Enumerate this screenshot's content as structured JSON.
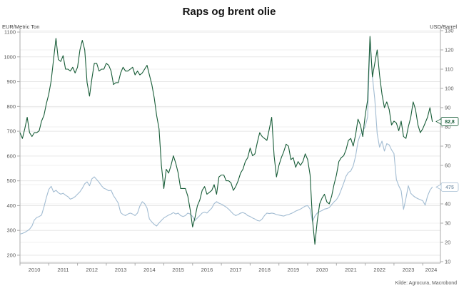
{
  "title": "Raps og brent olie",
  "source": "Kilde: Agrocura, Macrobond",
  "left_axis": {
    "unit": "EUR/Metric Ton",
    "tick_labels": [
      "1100",
      "1000",
      "900",
      "800",
      "700",
      "600",
      "500",
      "400",
      "300",
      "200"
    ]
  },
  "right_axis": {
    "unit": "USD/Barrel",
    "tick_labels": [
      "130",
      "120",
      "110",
      "100",
      "90",
      "80",
      "70",
      "60",
      "50",
      "40",
      "30",
      "20",
      "10"
    ]
  },
  "x_axis": {
    "tick_labels": [
      "2010",
      "2011",
      "2012",
      "2013",
      "2014",
      "2015",
      "2016",
      "2017",
      "2018",
      "2019",
      "2020",
      "2021",
      "2022",
      "2023",
      "2024"
    ]
  },
  "callouts": [
    {
      "label": "82,8",
      "value": 82.8,
      "axis": "right",
      "border": "#175c37",
      "text_color": "#175c37"
    },
    {
      "label": "475",
      "value": 475,
      "axis": "left",
      "border": "#a2bcd2",
      "text_color": "#8aa0b4"
    }
  ],
  "colors": {
    "brent_green": "#175c37",
    "raps_blue": "#a2bcd2",
    "grid_major": "#e7e7e7",
    "grid_minor": "#f2f2f2",
    "axis_line": "#ababab"
  },
  "chart_data": {
    "type": "line",
    "title": "Raps og brent olie",
    "grid": true,
    "legend": "none",
    "x_start": 2010.0,
    "x_step_years": 0.0833333,
    "x_ticks": [
      2010,
      2011,
      2012,
      2013,
      2014,
      2015,
      2016,
      2017,
      2018,
      2019,
      2020,
      2021,
      2022,
      2023,
      2024
    ],
    "left_axis_label": "EUR/Metric Ton",
    "left_ylim": [
      200,
      1100
    ],
    "right_axis_label": "USD/Barrel",
    "right_ylim": [
      10,
      130
    ],
    "series": [
      {
        "id": "raps",
        "name": "Raps",
        "axis": "left",
        "unit": "EUR/Metric Ton",
        "color": "#a2bcd2",
        "last_value": 475,
        "values": [
          285,
          288,
          292,
          298,
          305,
          318,
          342,
          352,
          356,
          362,
          395,
          432,
          465,
          478,
          455,
          462,
          452,
          446,
          450,
          442,
          436,
          426,
          430,
          436,
          446,
          456,
          470,
          488,
          496,
          480,
          508,
          516,
          505,
          494,
          480,
          470,
          466,
          460,
          462,
          440,
          426,
          410,
          372,
          364,
          360,
          366,
          370,
          366,
          360,
          370,
          398,
          416,
          408,
          390,
          346,
          334,
          324,
          318,
          330,
          340,
          350,
          356,
          362,
          366,
          372,
          366,
          370,
          360,
          356,
          360,
          370,
          366,
          356,
          340,
          350,
          360,
          370,
          374,
          370,
          380,
          390,
          408,
          416,
          410,
          406,
          400,
          394,
          386,
          376,
          366,
          360,
          364,
          370,
          372,
          368,
          360,
          356,
          350,
          346,
          340,
          338,
          346,
          360,
          370,
          368,
          370,
          368,
          364,
          362,
          360,
          358,
          362,
          364,
          368,
          372,
          378,
          382,
          386,
          392,
          398,
          400,
          386,
          336,
          358,
          370,
          376,
          380,
          386,
          388,
          392,
          404,
          415,
          424,
          440,
          464,
          490,
          518,
          534,
          540,
          560,
          600,
          658,
          688,
          700,
          718,
          758,
          1070,
          920,
          830,
          690,
          636,
          660,
          620,
          650,
          645,
          625,
          610,
          505,
          480,
          460,
          385,
          430,
          480,
          450,
          440,
          433,
          428,
          424,
          420,
          402,
          438,
          462,
          475
        ]
      },
      {
        "id": "brent",
        "name": "Brent olie",
        "axis": "right",
        "unit": "USD/Barrel",
        "color": "#175c37",
        "last_value": 82.8,
        "values": [
          77,
          74,
          79,
          85,
          77,
          75,
          77,
          77,
          78,
          83,
          86,
          92,
          97,
          104,
          115,
          126,
          115,
          114,
          117,
          110,
          110,
          109,
          111,
          108,
          111,
          120,
          125,
          120,
          103,
          96,
          105,
          113,
          113,
          109,
          110,
          110,
          113,
          112,
          109,
          102,
          103,
          103,
          108,
          111,
          109,
          109,
          110,
          111,
          107,
          109,
          107,
          108,
          110,
          112,
          107,
          102,
          95,
          86,
          79,
          60,
          48,
          58,
          56,
          60,
          65,
          61,
          56,
          48,
          48,
          48,
          44,
          37,
          28,
          33,
          39,
          42,
          47,
          49,
          45,
          46,
          47,
          50,
          45,
          54,
          55,
          55,
          52,
          52,
          51,
          47,
          49,
          52,
          56,
          58,
          62,
          64,
          69,
          65,
          66,
          72,
          77,
          75,
          74,
          73,
          79,
          85,
          65,
          54,
          60,
          64,
          67,
          71,
          70,
          63,
          64,
          59,
          62,
          60,
          62,
          66,
          63,
          55,
          32,
          19,
          31,
          40,
          43,
          45,
          41,
          40,
          44,
          50,
          55,
          62,
          64,
          65,
          68,
          73,
          74,
          70,
          76,
          84,
          81,
          75,
          86,
          94,
          127,
          106,
          113,
          120,
          107,
          97,
          90,
          93,
          89,
          81,
          83,
          82,
          78,
          83,
          75,
          74,
          80,
          85,
          93,
          89,
          81,
          77,
          79,
          82,
          85,
          90,
          82.8
        ]
      }
    ]
  }
}
